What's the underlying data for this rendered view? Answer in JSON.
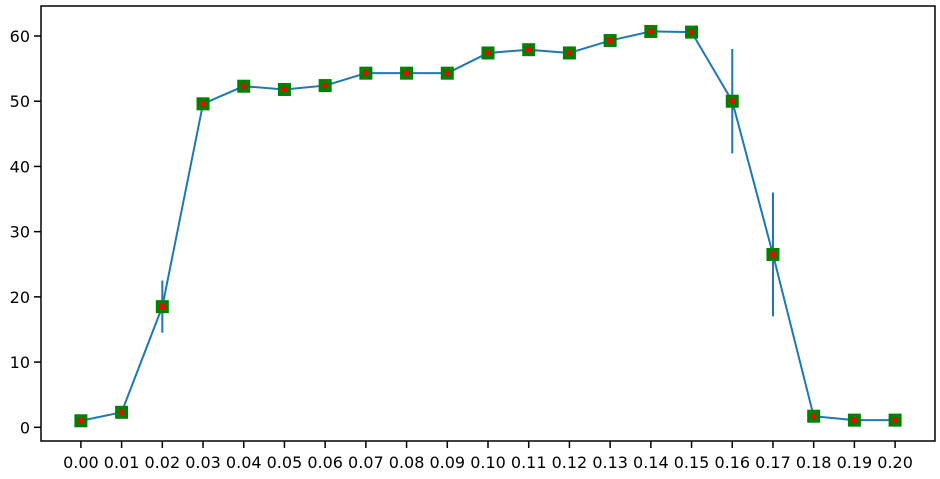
{
  "chart_data": {
    "type": "line",
    "title": "",
    "xlabel": "",
    "ylabel": "",
    "x": [
      0.0,
      0.01,
      0.02,
      0.03,
      0.04,
      0.05,
      0.06,
      0.07,
      0.08,
      0.09,
      0.1,
      0.11,
      0.12,
      0.13,
      0.14,
      0.15,
      0.16,
      0.17,
      0.18,
      0.19,
      0.2
    ],
    "x_tick_labels": [
      "0.00",
      "0.01",
      "0.02",
      "0.03",
      "0.04",
      "0.05",
      "0.06",
      "0.07",
      "0.08",
      "0.09",
      "0.10",
      "0.11",
      "0.12",
      "0.13",
      "0.14",
      "0.15",
      "0.16",
      "0.17",
      "0.18",
      "0.19",
      "0.20"
    ],
    "y_ticks": [
      0,
      10,
      20,
      30,
      40,
      50,
      60
    ],
    "y_tick_labels": [
      "0",
      "10",
      "20",
      "30",
      "40",
      "50",
      "60"
    ],
    "xlim": [
      -0.0098,
      0.2098
    ],
    "ylim": [
      -2.1,
      64.6
    ],
    "grid": false,
    "series": [
      {
        "values": [
          1.0,
          2.3,
          18.5,
          49.6,
          52.3,
          51.8,
          52.4,
          54.3,
          54.3,
          54.3,
          57.4,
          57.9,
          57.4,
          59.3,
          60.7,
          60.6,
          50.0,
          26.5,
          1.7,
          1.1,
          1.1
        ],
        "error": [
          0,
          0,
          4.0,
          0,
          0,
          0,
          0,
          0,
          0,
          0,
          0,
          0,
          0,
          0,
          0,
          0,
          8.0,
          9.5,
          0,
          0,
          0
        ],
        "line_color": "#1f77b4",
        "marker": "square",
        "marker_face_color": "#008000",
        "marker_center_color": "#ff0000"
      }
    ]
  }
}
